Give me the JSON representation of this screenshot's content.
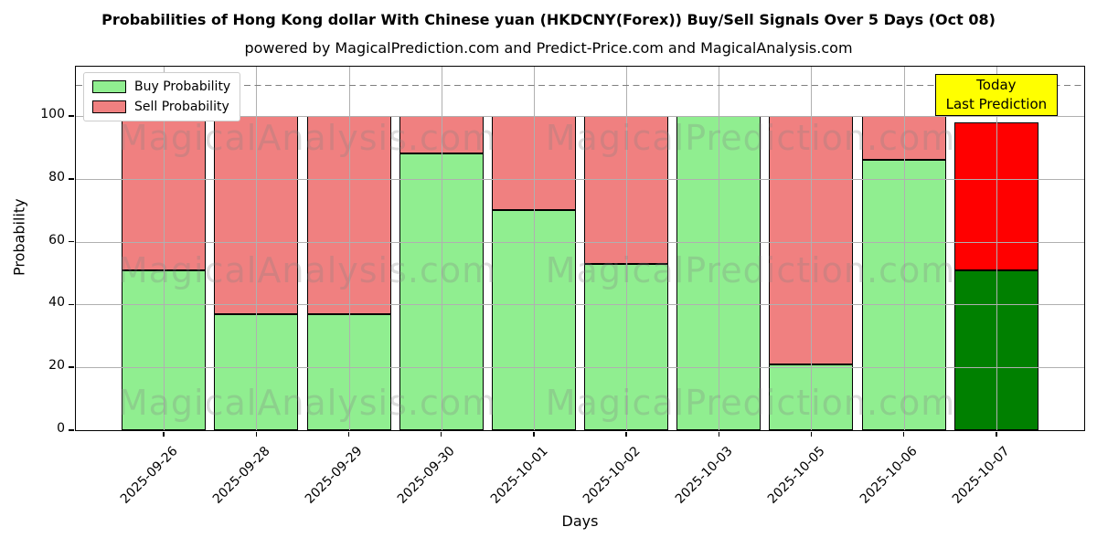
{
  "title": "Probabilities of Hong Kong dollar With Chinese yuan (HKDCNY(Forex)) Buy/Sell Signals Over 5 Days (Oct 08)",
  "subtitle": "powered by MagicalPrediction.com and Predict-Price.com and MagicalAnalysis.com",
  "legend": {
    "buy_label": "Buy Probability",
    "sell_label": "Sell Probability"
  },
  "annotation": {
    "line1": "Today",
    "line2": "Last Prediction"
  },
  "axes": {
    "x_label": "Days",
    "y_label": "Probability",
    "y_ticks": [
      0,
      20,
      40,
      60,
      80,
      100
    ]
  },
  "watermarks": {
    "left": "MagicalAnalysis.com",
    "right": "MagicalPrediction.com"
  },
  "colors": {
    "buy": "#90EE90",
    "sell": "#F08080",
    "today_buy": "#008000",
    "today_sell": "#FF0000",
    "bar_edge": "#000000",
    "grid": "#b0b0b0",
    "dashed_line": "#7f7f7f",
    "annotation_bg": "#FFFF00"
  },
  "chart_data": {
    "type": "bar",
    "stacked": true,
    "categories": [
      "2025-09-26",
      "2025-09-28",
      "2025-09-29",
      "2025-09-30",
      "2025-10-01",
      "2025-10-02",
      "2025-10-03",
      "2025-10-05",
      "2025-10-06",
      "2025-10-07"
    ],
    "series": [
      {
        "name": "Buy Probability",
        "values": [
          51,
          37,
          37,
          88,
          70,
          53,
          100,
          21,
          86,
          51
        ]
      },
      {
        "name": "Sell Probability",
        "values": [
          49,
          63,
          63,
          12,
          30,
          47,
          0,
          79,
          14,
          47
        ]
      }
    ],
    "today_index": 9,
    "dashed_line_y": 110,
    "ylim": [
      0,
      115.7
    ],
    "title": "Probabilities of Hong Kong dollar With Chinese yuan (HKDCNY(Forex)) Buy/Sell Signals Over 5 Days (Oct 08)",
    "xlabel": "Days",
    "ylabel": "Probability",
    "legend_position": "upper left",
    "grid": true
  }
}
